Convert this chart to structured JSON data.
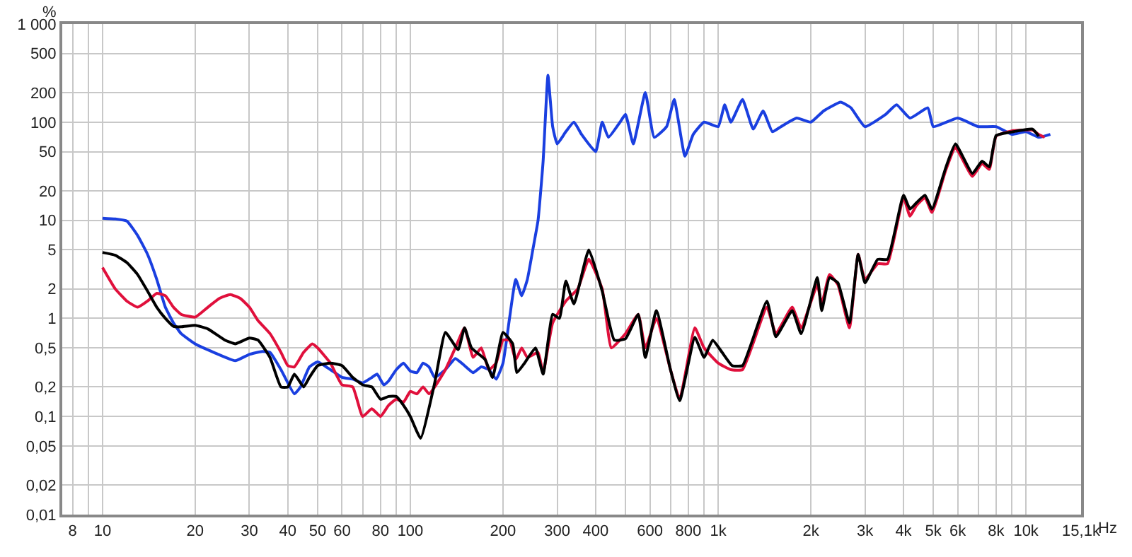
{
  "chart_data": {
    "type": "line",
    "ylabel": "%",
    "log": "xy",
    "grid": true,
    "marker": "none",
    "line_style": "solid",
    "xlim": [
      7.4,
      15100
    ],
    "xticks": [
      8,
      {
        "value": 9,
        "label": null
      },
      10,
      20,
      30,
      40,
      50,
      60,
      {
        "value": 70,
        "label": null
      },
      80,
      {
        "value": 90,
        "label": null
      },
      100,
      200,
      300,
      400,
      {
        "value": 500,
        "label": null
      },
      600,
      {
        "value": 700,
        "label": null
      },
      800,
      {
        "value": 900,
        "label": null
      },
      {
        "value": 1000,
        "label": "1k"
      },
      {
        "value": 2000,
        "label": "2k"
      },
      {
        "value": 3000,
        "label": "3k"
      },
      {
        "value": 4000,
        "label": "4k"
      },
      {
        "value": 5000,
        "label": "5k"
      },
      {
        "value": 6000,
        "label": "6k"
      },
      {
        "value": 7000,
        "label": null
      },
      {
        "value": 8000,
        "label": "8k"
      },
      {
        "value": 9000,
        "label": null
      },
      {
        "value": 10000,
        "label": "10k"
      },
      {
        "value": 15100,
        "label": "15,1k"
      }
    ],
    "xlabel": "Hz",
    "ylim": [
      0.01,
      1000
    ],
    "yticks": [
      {
        "value": 0.01,
        "label": "0,01"
      },
      {
        "value": 0.02,
        "label": "0,02"
      },
      {
        "value": 0.05,
        "label": "0,05"
      },
      {
        "value": 0.1,
        "label": "0,1"
      },
      {
        "value": 0.2,
        "label": "0,2"
      },
      {
        "value": 0.5,
        "label": "0,5"
      },
      1,
      2,
      5,
      10,
      20,
      50,
      100,
      200,
      500,
      {
        "value": 1000,
        "label": "1 000"
      }
    ],
    "series": [
      {
        "color": "#1a3fe0",
        "x": [
          10,
          11,
          12,
          13,
          14,
          15,
          16,
          17,
          18,
          20,
          23,
          27,
          30,
          33,
          35,
          38,
          42,
          44,
          47,
          50,
          55,
          60,
          65,
          70,
          75,
          78,
          82,
          85,
          90,
          95,
          100,
          105,
          110,
          115,
          120,
          130,
          140,
          150,
          160,
          170,
          180,
          190,
          200,
          210,
          220,
          230,
          240,
          250,
          260,
          270,
          280,
          290,
          300,
          320,
          340,
          360,
          400,
          420,
          440,
          480,
          500,
          530,
          580,
          620,
          680,
          720,
          780,
          830,
          900,
          1000,
          1050,
          1100,
          1200,
          1300,
          1400,
          1500,
          1600,
          1800,
          2000,
          2200,
          2500,
          2700,
          3000,
          3500,
          3800,
          4200,
          4800,
          5000,
          6000,
          7000,
          8000,
          9000,
          10000,
          11000,
          12000
        ],
        "values": [
          10.5,
          10.3,
          9.8,
          7,
          4.5,
          2.5,
          1.3,
          0.9,
          0.7,
          0.55,
          0.45,
          0.37,
          0.43,
          0.46,
          0.45,
          0.3,
          0.17,
          0.2,
          0.32,
          0.36,
          0.3,
          0.25,
          0.24,
          0.22,
          0.25,
          0.27,
          0.21,
          0.23,
          0.3,
          0.35,
          0.29,
          0.28,
          0.35,
          0.32,
          0.25,
          0.3,
          0.39,
          0.33,
          0.28,
          0.32,
          0.3,
          0.24,
          0.35,
          1,
          2.5,
          1.7,
          2.5,
          5,
          10,
          40,
          300,
          90,
          60,
          80,
          100,
          75,
          50,
          100,
          70,
          100,
          120,
          60,
          200,
          70,
          90,
          170,
          45,
          75,
          100,
          90,
          150,
          100,
          170,
          85,
          130,
          80,
          90,
          110,
          100,
          130,
          160,
          140,
          90,
          120,
          150,
          110,
          140,
          90,
          110,
          90,
          90,
          75,
          80,
          70,
          75
        ]
      },
      {
        "color": "#e0103c",
        "x": [
          10,
          11,
          12,
          13,
          14,
          15,
          16,
          17,
          18,
          20,
          22,
          24,
          26,
          28,
          30,
          32,
          35,
          38,
          40,
          42,
          45,
          48,
          50,
          55,
          60,
          65,
          70,
          75,
          80,
          85,
          90,
          95,
          100,
          105,
          110,
          115,
          120,
          130,
          140,
          150,
          160,
          170,
          180,
          190,
          200,
          210,
          220,
          230,
          240,
          260,
          270,
          290,
          320,
          350,
          380,
          420,
          450,
          500,
          550,
          580,
          630,
          700,
          750,
          840,
          900,
          1000,
          1100,
          1200,
          1440,
          1540,
          1740,
          1860,
          2100,
          2170,
          2300,
          2450,
          2670,
          2850,
          3000,
          3300,
          3550,
          4000,
          4200,
          4400,
          4700,
          4950,
          5500,
          5900,
          6700,
          7200,
          7600,
          8000,
          9100,
          10500,
          11000,
          11500
        ],
        "values": [
          3.3,
          2,
          1.5,
          1.3,
          1.5,
          1.8,
          1.7,
          1.3,
          1.1,
          1.03,
          1.3,
          1.6,
          1.75,
          1.6,
          1.3,
          0.95,
          0.7,
          0.45,
          0.33,
          0.32,
          0.45,
          0.55,
          0.5,
          0.35,
          0.21,
          0.2,
          0.1,
          0.12,
          0.1,
          0.13,
          0.15,
          0.14,
          0.18,
          0.17,
          0.2,
          0.17,
          0.2,
          0.3,
          0.5,
          0.8,
          0.4,
          0.5,
          0.3,
          0.35,
          0.6,
          0.6,
          0.38,
          0.5,
          0.4,
          0.45,
          0.28,
          0.9,
          1.5,
          2,
          4,
          2,
          0.5,
          0.7,
          1.1,
          0.5,
          1,
          0.3,
          0.15,
          0.8,
          0.5,
          0.35,
          0.3,
          0.3,
          1.3,
          0.7,
          1.3,
          0.8,
          2.2,
          1.4,
          2.8,
          2.2,
          0.8,
          4.5,
          2.5,
          3.6,
          3.6,
          17,
          11,
          14,
          17,
          12,
          33,
          55,
          28,
          38,
          33,
          72,
          82,
          83,
          75,
          70
        ]
      },
      {
        "color": "#000000",
        "x": [
          10,
          11,
          12,
          13,
          14,
          15,
          16,
          17,
          18,
          20,
          22,
          25,
          27,
          30,
          32,
          35,
          38,
          40,
          42,
          45,
          47,
          50,
          55,
          60,
          65,
          70,
          75,
          80,
          85,
          90,
          95,
          100,
          108,
          120,
          130,
          143,
          150,
          158,
          175,
          185,
          200,
          215,
          222,
          235,
          255,
          270,
          290,
          305,
          320,
          340,
          380,
          420,
          460,
          500,
          550,
          580,
          630,
          700,
          750,
          840,
          900,
          960,
          1030,
          1110,
          1200,
          1440,
          1540,
          1740,
          1860,
          2100,
          2170,
          2300,
          2450,
          2670,
          2850,
          3000,
          3300,
          3550,
          4000,
          4200,
          4400,
          4700,
          4950,
          5500,
          5900,
          6700,
          7200,
          7600,
          8000,
          9100,
          10500,
          11000
        ],
        "values": [
          4.7,
          4.4,
          3.7,
          2.8,
          1.9,
          1.3,
          1,
          0.83,
          0.82,
          0.85,
          0.78,
          0.6,
          0.55,
          0.63,
          0.6,
          0.4,
          0.2,
          0.2,
          0.27,
          0.2,
          0.25,
          0.33,
          0.35,
          0.33,
          0.25,
          0.21,
          0.2,
          0.15,
          0.16,
          0.16,
          0.13,
          0.1,
          0.06,
          0.22,
          0.72,
          0.48,
          0.8,
          0.5,
          0.38,
          0.25,
          0.72,
          0.55,
          0.28,
          0.35,
          0.5,
          0.27,
          1.1,
          1,
          2.4,
          1.4,
          5,
          1.9,
          0.6,
          0.62,
          1.1,
          0.4,
          1.2,
          0.3,
          0.145,
          0.64,
          0.4,
          0.6,
          0.45,
          0.33,
          0.33,
          1.5,
          0.65,
          1.2,
          0.7,
          2.6,
          1.2,
          2.6,
          2.3,
          0.9,
          4.5,
          2.3,
          4,
          4,
          18,
          13,
          15,
          18,
          13,
          35,
          60,
          30,
          40,
          35,
          73,
          80,
          85,
          72
        ]
      }
    ]
  }
}
